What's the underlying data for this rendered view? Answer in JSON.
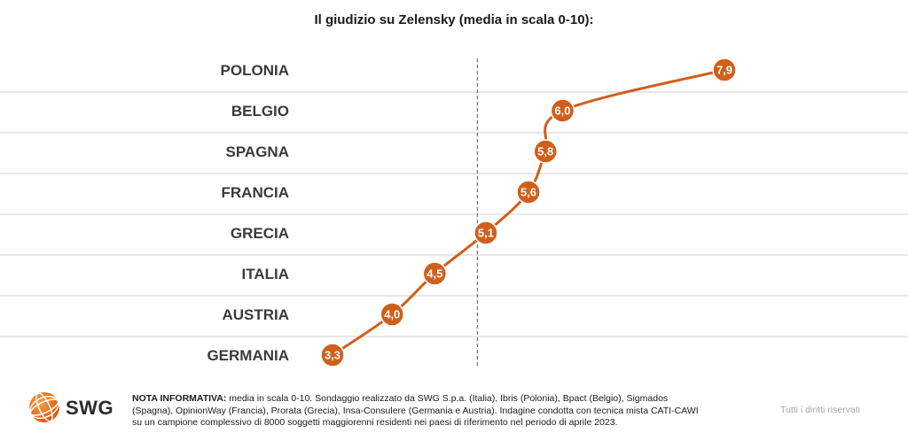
{
  "chart_data": {
    "type": "line",
    "title": "Il giudizio su Zelensky (media in scala 0-10):",
    "categories": [
      "POLONIA",
      "BELGIO",
      "SPAGNA",
      "FRANCIA",
      "GRECIA",
      "ITALIA",
      "AUSTRIA",
      "GERMANIA"
    ],
    "values": [
      7.9,
      6.0,
      5.8,
      5.6,
      5.1,
      4.5,
      4.0,
      3.3
    ],
    "value_labels": [
      "7,9",
      "6,0",
      "5,8",
      "5,6",
      "5,1",
      "4,5",
      "4,0",
      "3,3"
    ],
    "orientation": "horizontal",
    "xlim": [
      0,
      10
    ],
    "reference_line": 5,
    "grid": true,
    "colors": {
      "series": "#cf5f1b",
      "grid": "#cfcfcf",
      "reference": "#555555"
    }
  },
  "footer": {
    "logo_text": "SWG",
    "note_label": "NOTA INFORMATIVA:",
    "note_text": " media in scala 0-10. Sondaggio realizzato da SWG S.p.a. (Italia), Ibris (Polonia), Bpact (Belgio), Sigmados (Spagna), OpinionWay (Francia), Prorata (Grecia), Insa-Consulere (Germania e Austria). Indagine condotta con tecnica mista CATI-CAWI su un campione complessivo di 8000 soggetti maggiorenni residenti nei paesi di riferimento nel periodo di aprile 2023.",
    "rights": "Tutti i diritti riservati"
  }
}
